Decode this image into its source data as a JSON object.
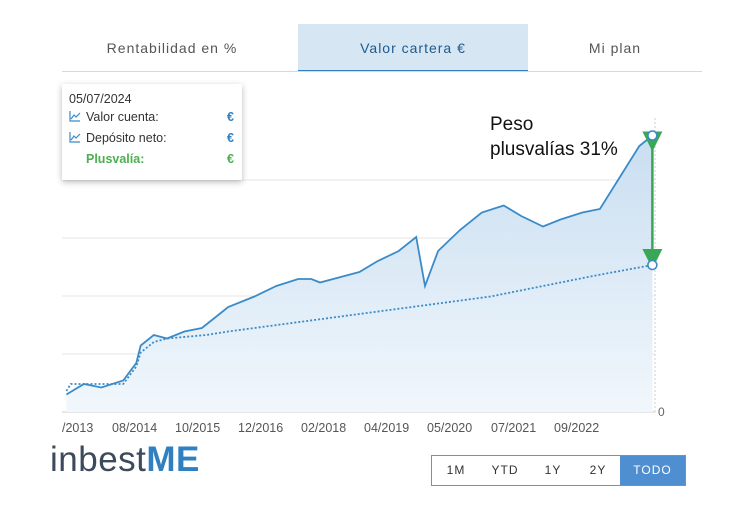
{
  "tabs": [
    {
      "label": "Rentabilidad en %",
      "active": false
    },
    {
      "label": "Valor cartera €",
      "active": true
    },
    {
      "label": "Mi plan",
      "active": false
    }
  ],
  "tooltip": {
    "date": "05/07/2024",
    "rows": [
      {
        "label": "Valor cuenta:",
        "value": "€",
        "icon": "line-chart-icon"
      },
      {
        "label": "Depósito neto:",
        "value": "€",
        "icon": "line-chart-icon"
      },
      {
        "label": "Plusvalía:",
        "value": "€"
      }
    ]
  },
  "annotation": {
    "line1": "Peso",
    "line2": "plusvalías 31%",
    "arrow_color": "#3aa757"
  },
  "logo": {
    "text": "inbest",
    "accent": "ME"
  },
  "ranges": [
    {
      "label": "1M",
      "active": false
    },
    {
      "label": "YTD",
      "active": false
    },
    {
      "label": "1Y",
      "active": false
    },
    {
      "label": "2Y",
      "active": false
    },
    {
      "label": "TODO",
      "active": true
    }
  ],
  "colors": {
    "line": "#3b8bc8",
    "fill": "#dbe9f5",
    "accent": "#2f7fc1",
    "green": "#4caf50"
  },
  "chart_data": {
    "type": "area",
    "x_tick_labels": [
      "/2013",
      "08/2014",
      "10/2015",
      "12/2016",
      "02/2018",
      "04/2019",
      "05/2020",
      "07/2021",
      "09/2022"
    ],
    "y_tick_labels": [
      "0"
    ],
    "series": [
      {
        "name": "Valor cuenta",
        "style": "solid",
        "x": [
          "2013-05",
          "2013-09",
          "2014-01",
          "2014-06",
          "2014-09",
          "2014-10",
          "2015-01",
          "2015-04",
          "2015-08",
          "2015-12",
          "2016-03",
          "2016-06",
          "2016-12",
          "2017-05",
          "2017-10",
          "2018-01",
          "2018-03",
          "2018-09",
          "2018-12",
          "2019-04",
          "2019-09",
          "2020-01",
          "2020-03",
          "2020-06",
          "2020-11",
          "2021-04",
          "2021-09",
          "2022-01",
          "2022-06",
          "2022-10",
          "2023-03",
          "2023-07",
          "2023-12",
          "2024-04",
          "2024-07"
        ],
        "y": [
          5,
          8,
          7,
          9,
          14,
          19,
          22,
          21,
          23,
          24,
          27,
          30,
          33,
          36,
          38,
          38,
          37,
          39,
          40,
          43,
          46,
          50,
          36,
          46,
          52,
          57,
          59,
          56,
          53,
          55,
          57,
          58,
          68,
          76,
          79
        ]
      },
      {
        "name": "Depósito neto",
        "style": "dotted",
        "x": [
          "2013-05",
          "2013-06",
          "2014-06",
          "2014-09",
          "2014-10",
          "2015-01",
          "2015-04",
          "2016-01",
          "2016-06",
          "2017-06",
          "2018-06",
          "2019-06",
          "2020-06",
          "2021-06",
          "2022-06",
          "2023-06",
          "2024-07"
        ],
        "y": [
          6,
          8,
          8,
          13,
          17,
          20,
          21,
          22,
          23,
          25,
          27,
          29,
          31,
          33,
          36,
          39,
          42
        ]
      }
    ]
  }
}
